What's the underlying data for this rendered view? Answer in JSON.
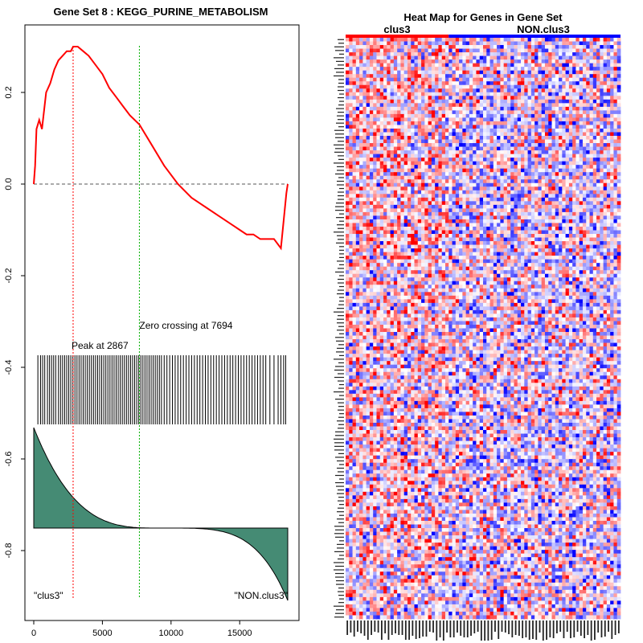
{
  "left_title": "Gene Set  8 : KEGG_PURINE_METABOLISM",
  "right_title": "Heat Map for Genes in Gene Set",
  "chart_data": [
    {
      "type": "line",
      "name": "enrichment-score-plot",
      "title": "Gene Set  8 : KEGG_PURINE_METABOLISM",
      "xlim": [
        0,
        18500
      ],
      "ylim": [
        -0.9,
        0.3
      ],
      "x_ticks": [
        0,
        5000,
        10000,
        15000
      ],
      "x_tick_labels": [
        "0",
        "5000",
        "10000",
        "15000"
      ],
      "y_ticks": [
        0.2,
        0.0,
        -0.2,
        -0.4,
        -0.6,
        -0.8
      ],
      "y_tick_labels": [
        "0.2",
        "0.0",
        "-0.2",
        "-0.4",
        "-0.6",
        "-0.8"
      ],
      "series": [
        {
          "name": "running-enrichment-score",
          "color": "#ff0000",
          "x": [
            0,
            100,
            200,
            400,
            600,
            900,
            1200,
            1500,
            1800,
            2100,
            2400,
            2700,
            2867,
            3200,
            3600,
            4000,
            4500,
            5000,
            5500,
            6000,
            6500,
            7000,
            7694,
            8500,
            9500,
            10500,
            11500,
            12500,
            13500,
            14500,
            15000,
            15500,
            16000,
            16500,
            17000,
            17500,
            18000,
            18200,
            18400,
            18500
          ],
          "y": [
            0.0,
            0.04,
            0.12,
            0.14,
            0.12,
            0.2,
            0.22,
            0.25,
            0.27,
            0.28,
            0.29,
            0.29,
            0.3,
            0.3,
            0.29,
            0.28,
            0.26,
            0.24,
            0.21,
            0.19,
            0.17,
            0.15,
            0.13,
            0.09,
            0.04,
            0.0,
            -0.03,
            -0.05,
            -0.07,
            -0.09,
            -0.1,
            -0.11,
            -0.11,
            -0.12,
            -0.12,
            -0.12,
            -0.14,
            -0.08,
            -0.02,
            0.0
          ]
        }
      ],
      "zero_line": 0.0,
      "peak": {
        "x": 2867,
        "label": "Peak at 2867",
        "color": "#ff0000"
      },
      "zero_crossing": {
        "x": 7694,
        "label": "Zero crossing at 7694",
        "color": "#00b000"
      },
      "hit_positions": [
        300,
        500,
        650,
        800,
        1000,
        1150,
        1300,
        1450,
        1600,
        1800,
        1950,
        2100,
        2250,
        2400,
        2550,
        2700,
        2850,
        3000,
        3150,
        3300,
        3450,
        3600,
        3750,
        3900,
        4050,
        4200,
        4350,
        4500,
        4650,
        4800,
        4950,
        5100,
        5250,
        5400,
        5550,
        5700,
        5850,
        6000,
        6150,
        6300,
        6450,
        6600,
        6750,
        6900,
        7050,
        7200,
        7350,
        7500,
        7650,
        7800,
        7950,
        8100,
        8250,
        8400,
        8550,
        8700,
        8850,
        9000,
        9150,
        9300,
        9500,
        9700,
        9900,
        10100,
        10300,
        10500,
        10700,
        10900,
        11100,
        11300,
        11500,
        11700,
        11900,
        12100,
        12300,
        12500,
        12700,
        12900,
        13100,
        13300,
        13500,
        13700,
        13900,
        14100,
        14300,
        14500,
        14700,
        14900,
        15100,
        15300,
        15500,
        15700,
        15900,
        16100,
        16300,
        16500,
        16700,
        16900,
        17200,
        17500,
        17800,
        18000,
        18200,
        18350
      ],
      "hit_color": "#000000",
      "ranked_metric_fill": "#458b74",
      "class_labels": [
        "\"clus3\"",
        "\"NON.clus3\""
      ]
    },
    {
      "type": "heatmap",
      "name": "gene-set-heatmap",
      "title": "Heat Map for Genes in Gene Set",
      "column_groups": [
        {
          "label": "clus3",
          "color": "#ff0000",
          "fraction": 0.37
        },
        {
          "label": "NON.clus3",
          "color": "#0000ff",
          "fraction": 0.63
        }
      ],
      "n_rows": 160,
      "n_cols": 80,
      "low_color": "#0000ff",
      "mid_color": "#ffffff",
      "high_color": "#ff0000"
    }
  ]
}
